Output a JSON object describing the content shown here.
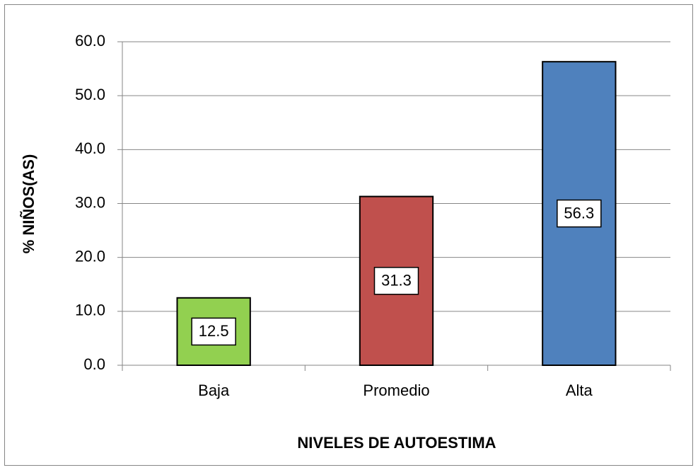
{
  "chart_data": {
    "type": "bar",
    "categories": [
      "Baja",
      "Promedio",
      "Alta"
    ],
    "values": [
      12.5,
      31.3,
      56.3
    ],
    "colors": [
      "#92d050",
      "#c0504d",
      "#4f81bd"
    ],
    "xlabel": "NIVELES DE AUTOESTIMA",
    "ylabel": "% NIÑOS(AS)",
    "ylim": [
      0,
      60
    ],
    "yticks": [
      {
        "value": 0,
        "label": "0.0"
      },
      {
        "value": 10,
        "label": "10.0"
      },
      {
        "value": 20,
        "label": "20.0"
      },
      {
        "value": 30,
        "label": "30.0"
      },
      {
        "value": 40,
        "label": "40.0"
      },
      {
        "value": 50,
        "label": "50.0"
      },
      {
        "value": 60,
        "label": "60.0"
      }
    ],
    "grid": true
  }
}
